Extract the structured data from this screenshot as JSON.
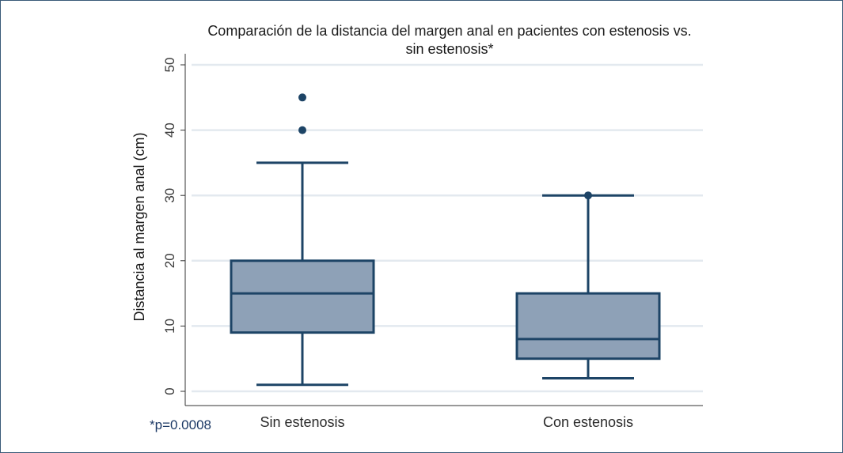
{
  "chart_data": {
    "type": "box",
    "title_lines": [
      "Comparación de la distancia del margen anal en pacientes con estenosis vs.",
      "sin estenosis*"
    ],
    "xlabel": "",
    "ylabel": "Distancia al margen anal (cm)",
    "ylim": [
      0,
      50
    ],
    "yticks": [
      0,
      10,
      20,
      30,
      40,
      50
    ],
    "grid": true,
    "categories": [
      "Sin estenosis",
      "Con estenosis"
    ],
    "boxes": [
      {
        "name": "Sin estenosis",
        "whisker_low": 1,
        "q1": 9,
        "median": 15,
        "q3": 20,
        "whisker_high": 35,
        "outliers": [
          40,
          45
        ]
      },
      {
        "name": "Con estenosis",
        "whisker_low": 2,
        "q1": 5,
        "median": 8,
        "q3": 15,
        "whisker_high": 30,
        "outliers": [
          30
        ]
      }
    ],
    "footnote": "*p=0.0008",
    "colors": {
      "box_fill": "#8ea1b7",
      "line": "#1d4466",
      "grid": "#e3e9ef",
      "axis": "#333333"
    }
  }
}
